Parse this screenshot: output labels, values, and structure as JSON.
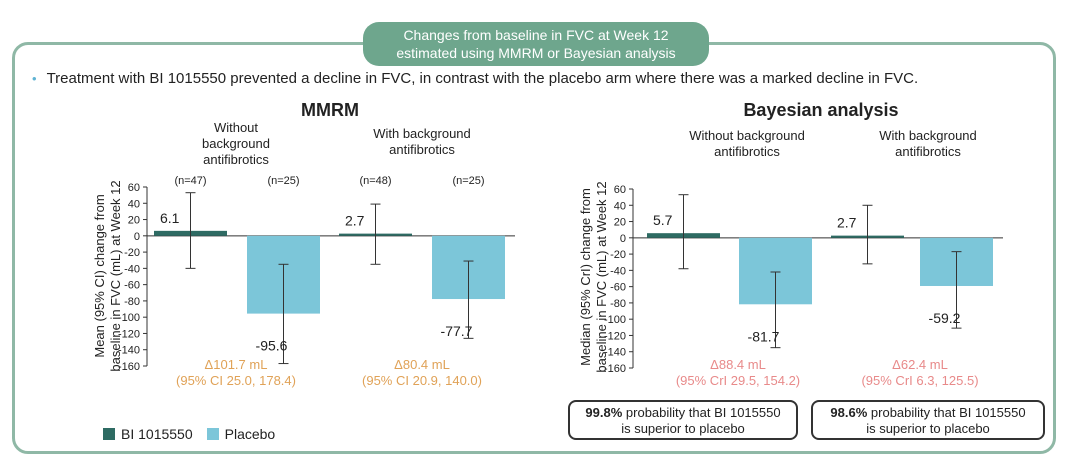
{
  "header": {
    "line1": "Changes from baseline in FVC at Week 12",
    "line2": "estimated using MMRM or Bayesian analysis"
  },
  "bullet": "Treatment with BI 1015550 prevented a decline in FVC, in contrast with the placebo arm where there was a marked decline in FVC.",
  "legend": [
    {
      "label": "BI 1015550",
      "color": "#2e6b63"
    },
    {
      "label": "Placebo",
      "color": "#7cc6d9"
    }
  ],
  "colors": {
    "bi": "#2e6b63",
    "placebo": "#7cc6d9",
    "delta": "#e0a257",
    "delta_bayes": "#e88a8a",
    "frame": "#8fb8a6",
    "header": "#6ea68d"
  },
  "probabilities": [
    {
      "pct": "99.8%",
      "text1": " probability that BI 1015550",
      "text2": "is superior to placebo"
    },
    {
      "pct": "98.6%",
      "text1": " probability that BI 1015550",
      "text2": "is superior to placebo"
    }
  ],
  "chart_data": [
    {
      "type": "bar",
      "title": "MMRM",
      "ylabel": [
        "Mean (95% CI) change from",
        "baseline in FVC (mL) at Week 12"
      ],
      "ylim": [
        -160,
        60
      ],
      "yticks": [
        60,
        40,
        20,
        0,
        -20,
        -40,
        -60,
        -80,
        -100,
        -120,
        -140,
        -160
      ],
      "groups": [
        {
          "label": [
            "Without",
            "background",
            "antifibrotics"
          ],
          "bars": [
            {
              "series": "BI 1015550",
              "n": "(n=47)",
              "value": 6.1,
              "label": "6.1",
              "ci": [
                -40,
                53
              ]
            },
            {
              "series": "Placebo",
              "n": "(n=25)",
              "value": -95.6,
              "label": "-95.6",
              "ci": [
                -157,
                -35
              ]
            }
          ],
          "delta": [
            "Δ101.7 mL",
            "(95% CI 25.0, 178.4)"
          ]
        },
        {
          "label": [
            "With background",
            "antifibrotics"
          ],
          "bars": [
            {
              "series": "BI 1015550",
              "n": "(n=48)",
              "value": 2.7,
              "label": "2.7",
              "ci": [
                -35,
                39
              ]
            },
            {
              "series": "Placebo",
              "n": "(n=25)",
              "value": -77.7,
              "label": "-77.7",
              "ci": [
                -126,
                -31
              ]
            }
          ],
          "delta": [
            "Δ80.4 mL",
            "(95% CI 20.9, 140.0)"
          ]
        }
      ]
    },
    {
      "type": "bar",
      "title": "Bayesian analysis",
      "ylabel": [
        "Median (95% CrI) change from",
        "baseline in FVC (mL) at Week 12"
      ],
      "ylim": [
        -160,
        60
      ],
      "yticks": [
        60,
        40,
        20,
        0,
        -20,
        -40,
        -60,
        -80,
        -100,
        -120,
        -140,
        -160
      ],
      "groups": [
        {
          "label": [
            "Without background",
            "antifibrotics"
          ],
          "bars": [
            {
              "series": "BI 1015550",
              "n": "",
              "value": 5.7,
              "label": "5.7",
              "ci": [
                -38,
                53
              ]
            },
            {
              "series": "Placebo",
              "n": "",
              "value": -81.7,
              "label": "-81.7",
              "ci": [
                -135,
                -42
              ]
            }
          ],
          "delta": [
            "Δ88.4 mL",
            "(95% CrI 29.5, 154.2)"
          ]
        },
        {
          "label": [
            "With background",
            "antifibrotics"
          ],
          "bars": [
            {
              "series": "BI 1015550",
              "n": "",
              "value": 2.7,
              "label": "2.7",
              "ci": [
                -32,
                40
              ]
            },
            {
              "series": "Placebo",
              "n": "",
              "value": -59.2,
              "label": "-59.2",
              "ci": [
                -111,
                -17
              ]
            }
          ],
          "delta": [
            "Δ62.4 mL",
            "(95% CrI 6.3, 125.5)"
          ]
        }
      ]
    }
  ]
}
